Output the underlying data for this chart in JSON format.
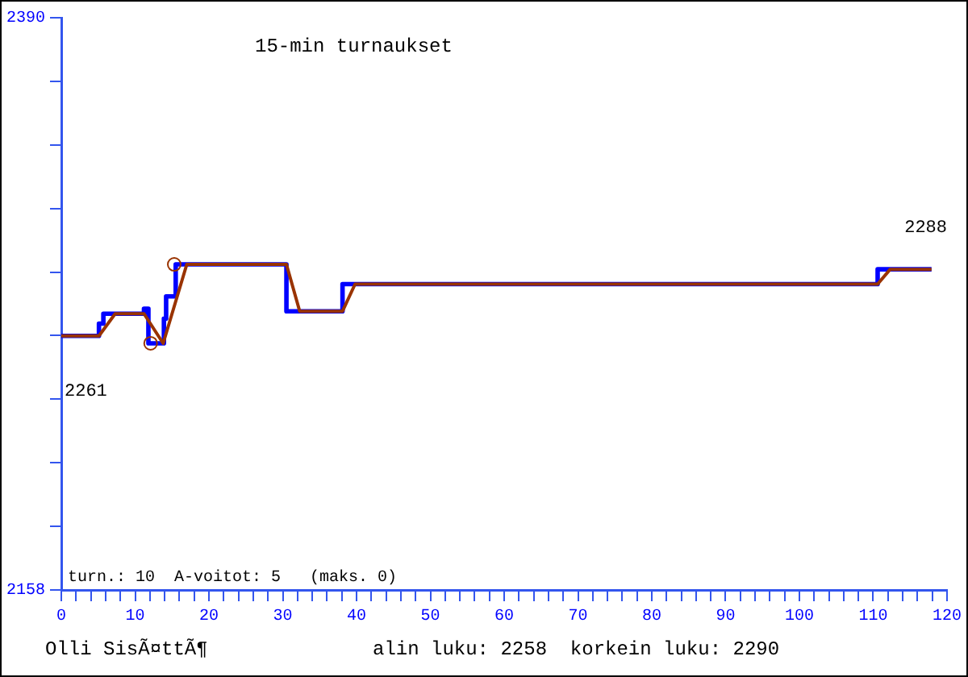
{
  "chart_data": {
    "type": "line",
    "title": "15-min turnaukset",
    "xlim": [
      0,
      120
    ],
    "xticks": [
      0,
      {
        "value": 2,
        "label": null
      },
      {
        "value": 4,
        "label": null
      },
      {
        "value": 6,
        "label": null
      },
      {
        "value": 8,
        "label": null
      },
      10,
      {
        "value": 12,
        "label": null
      },
      {
        "value": 14,
        "label": null
      },
      {
        "value": 16,
        "label": null
      },
      {
        "value": 18,
        "label": null
      },
      20,
      {
        "value": 22,
        "label": null
      },
      {
        "value": 24,
        "label": null
      },
      {
        "value": 26,
        "label": null
      },
      {
        "value": 28,
        "label": null
      },
      30,
      {
        "value": 32,
        "label": null
      },
      {
        "value": 34,
        "label": null
      },
      {
        "value": 36,
        "label": null
      },
      {
        "value": 38,
        "label": null
      },
      40,
      {
        "value": 42,
        "label": null
      },
      {
        "value": 44,
        "label": null
      },
      {
        "value": 46,
        "label": null
      },
      {
        "value": 48,
        "label": null
      },
      50,
      {
        "value": 52,
        "label": null
      },
      {
        "value": 54,
        "label": null
      },
      {
        "value": 56,
        "label": null
      },
      {
        "value": 58,
        "label": null
      },
      60,
      {
        "value": 62,
        "label": null
      },
      {
        "value": 64,
        "label": null
      },
      {
        "value": 66,
        "label": null
      },
      {
        "value": 68,
        "label": null
      },
      70,
      {
        "value": 72,
        "label": null
      },
      {
        "value": 74,
        "label": null
      },
      {
        "value": 76,
        "label": null
      },
      {
        "value": 78,
        "label": null
      },
      80,
      {
        "value": 82,
        "label": null
      },
      {
        "value": 84,
        "label": null
      },
      {
        "value": 86,
        "label": null
      },
      {
        "value": 88,
        "label": null
      },
      90,
      {
        "value": 92,
        "label": null
      },
      {
        "value": 94,
        "label": null
      },
      {
        "value": 96,
        "label": null
      },
      {
        "value": 98,
        "label": null
      },
      100,
      {
        "value": 102,
        "label": null
      },
      {
        "value": 104,
        "label": null
      },
      {
        "value": 106,
        "label": null
      },
      {
        "value": 108,
        "label": null
      },
      110,
      {
        "value": 112,
        "label": null
      },
      {
        "value": 114,
        "label": null
      },
      {
        "value": 116,
        "label": null
      },
      {
        "value": 118,
        "label": null
      },
      120
    ],
    "ylim": [
      2158,
      2390
    ],
    "yticks": [
      2158,
      {
        "value": 2183.8,
        "label": null
      },
      {
        "value": 2209.6,
        "label": null
      },
      {
        "value": 2235.3,
        "label": null
      },
      {
        "value": 2261.1,
        "label": null
      },
      {
        "value": 2286.9,
        "label": null
      },
      {
        "value": 2312.7,
        "label": null
      },
      {
        "value": 2338.4,
        "label": null
      },
      {
        "value": 2364.2,
        "label": null
      },
      2390
    ],
    "grid": false,
    "legend": false,
    "series": [
      {
        "color": "#0000ff",
        "x": [
          0,
          5.1,
          5.1,
          5.7,
          5.7,
          11.2,
          11.2,
          11.8,
          11.8,
          13.9,
          13.9,
          14.2,
          14.2,
          15.5,
          15.5,
          30.5,
          30.5,
          32.3,
          38.1,
          38.1,
          39.8,
          110.6,
          110.6,
          117.9
        ],
        "values": [
          2261,
          2261,
          2266,
          2266,
          2270,
          2270,
          2272,
          2272,
          2258,
          2258,
          2268,
          2268,
          2277,
          2277,
          2290,
          2290,
          2271,
          2271,
          2271,
          2282,
          2282,
          2282,
          2288,
          2288
        ]
      },
      {
        "color": "#993300",
        "x": [
          0,
          5.1,
          7.3,
          11.2,
          13.8,
          17,
          30.5,
          32.3,
          38.1,
          39.8,
          110.6,
          112.3,
          117.9
        ],
        "values": [
          2261,
          2261,
          2270,
          2270,
          2258,
          2290,
          2290,
          2271,
          2271,
          2282,
          2282,
          2288,
          2288
        ]
      },
      {
        "type": "scatter",
        "color": "#993300",
        "marker": "circle",
        "x": [
          12.1,
          15.3
        ],
        "values": [
          2258,
          2290
        ]
      }
    ],
    "annotations": [
      {
        "text": "2261",
        "x": 0,
        "y": 2261
      },
      {
        "text": "2288",
        "x": 117.9,
        "y": 2288
      },
      "turn.: 10  A-voitot: 5   (maks. 0)",
      "Olli SisÃ¤ttÃ¶",
      "alin luku: 2258  korkein luku: 2290"
    ]
  }
}
